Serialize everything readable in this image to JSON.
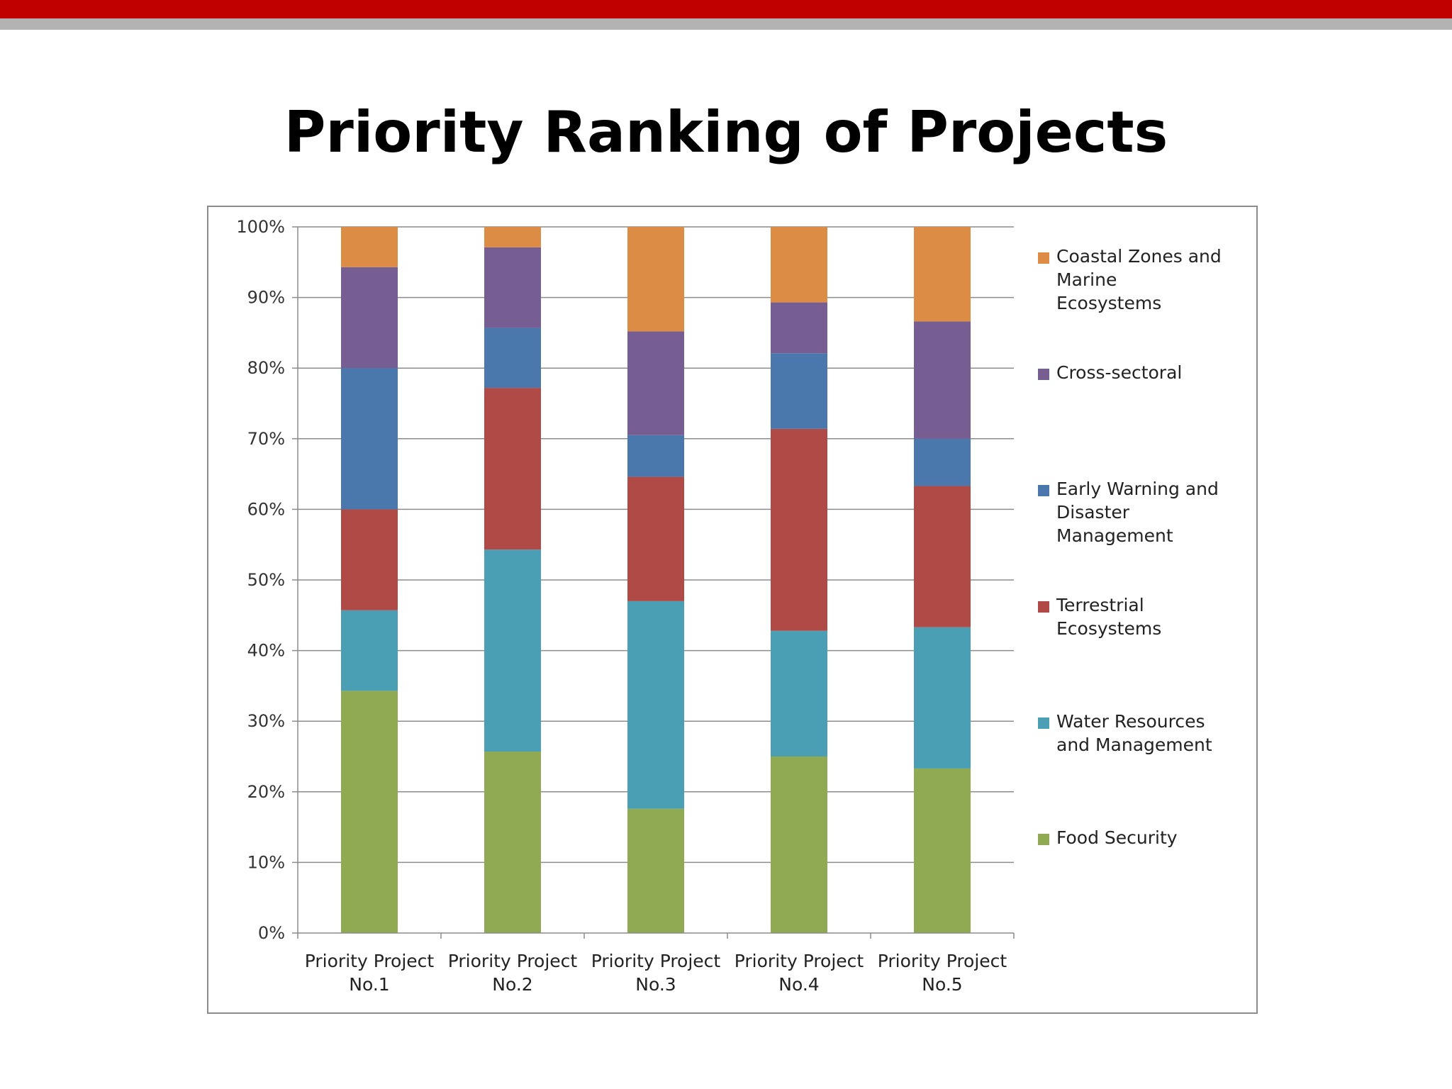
{
  "slide": {
    "title": "Priority Ranking of Projects",
    "colors": {
      "top_bar": "#c00000",
      "sub_bar": "#b3b3b3"
    }
  },
  "chart_data": {
    "type": "bar",
    "stacked": true,
    "percent": true,
    "categories": [
      [
        "Priority Project",
        "No.1"
      ],
      [
        "Priority Project",
        "No.2"
      ],
      [
        "Priority Project",
        "No.3"
      ],
      [
        "Priority Project",
        "No.4"
      ],
      [
        "Priority Project",
        "No.5"
      ]
    ],
    "y_ticks": [
      "0%",
      "10%",
      "20%",
      "30%",
      "40%",
      "50%",
      "60%",
      "70%",
      "80%",
      "90%",
      "100%"
    ],
    "ylim": [
      0,
      100
    ],
    "grid": true,
    "legend_position": "right",
    "series": [
      {
        "name": "Food Security",
        "name_lines": [
          "Food Security"
        ],
        "color": "#8faa52",
        "values": [
          34.3,
          25.7,
          17.6,
          25.0,
          23.3
        ]
      },
      {
        "name": "Water Resources and Management",
        "name_lines": [
          "Water Resources",
          "and Management"
        ],
        "color": "#4a9fb5",
        "values": [
          11.4,
          28.6,
          29.4,
          17.8,
          20.0
        ]
      },
      {
        "name": "Terrestrial Ecosystems",
        "name_lines": [
          "Terrestrial",
          "Ecosystems"
        ],
        "color": "#b04a47",
        "values": [
          14.3,
          22.9,
          17.6,
          28.6,
          20.0
        ]
      },
      {
        "name": "Early Warning and Disaster Management",
        "name_lines": [
          "Early Warning and",
          "Disaster",
          "Management"
        ],
        "color": "#4a78ad",
        "values": [
          20.0,
          8.5,
          5.9,
          10.7,
          6.7
        ]
      },
      {
        "name": "Cross-sectoral",
        "name_lines": [
          "Cross-sectoral"
        ],
        "color": "#775e92",
        "values": [
          14.3,
          11.4,
          14.7,
          7.2,
          16.6
        ]
      },
      {
        "name": "Coastal Zones and Marine Ecosystems",
        "name_lines": [
          "Coastal Zones and",
          "Marine",
          "Ecosystems"
        ],
        "color": "#dc8c44",
        "values": [
          5.7,
          2.9,
          14.8,
          10.7,
          13.4
        ]
      }
    ]
  }
}
